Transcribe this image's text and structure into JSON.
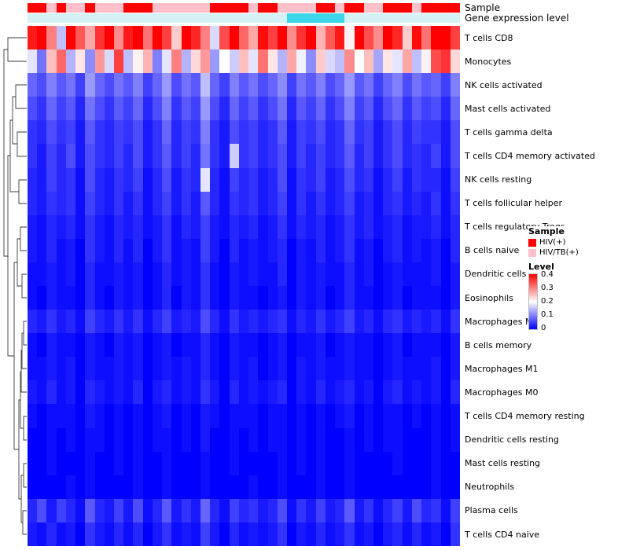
{
  "annotations": {
    "sample_label": "Sample",
    "expression_label": "Gene expression level"
  },
  "legend": {
    "sample": {
      "title": "Sample",
      "items": [
        {
          "label": "HIV(+)",
          "color": "#FF0000"
        },
        {
          "label": "HIV/TB(+)",
          "color": "#FFC0CB"
        }
      ]
    },
    "level": {
      "title": "Level",
      "ticks": [
        "0.4",
        "0.3",
        "0.2",
        "0.1",
        "0"
      ]
    }
  },
  "colors": {
    "sample_groups": {
      "HIV(+)": "#FF0000",
      "HIV/TB(+)": "#FFC0CB"
    },
    "expression_levels": {
      "low": "#D4F2F6",
      "high": "#3CD6E8"
    },
    "scale_high": "#FF0000",
    "scale_mid": "#FFFFFF",
    "scale_low": "#0000FF"
  },
  "chart_data": {
    "type": "heatmap",
    "value_max": 0.4,
    "n_columns": 45,
    "rows": [
      "T cells CD8",
      "Monocytes",
      "NK cells activated",
      "Mast cells activated",
      "T cells gamma delta",
      "T cells CD4 memory activated",
      "NK cells resting",
      "T cells follicular helper",
      "T cells regulatory Tregs",
      "B cells naive",
      "Dendritic cells activated",
      "Eosinophils",
      "Macrophages M2",
      "B cells memory",
      "Macrophages M1",
      "Macrophages M0",
      "T cells CD4 memory resting",
      "Dendritic cells resting",
      "Mast cells resting",
      "Neutrophils",
      "Plasma cells",
      "T cells CD4 naive"
    ],
    "sample_groups": [
      "HIV(+)",
      "HIV(+)",
      "HIV/TB(+)",
      "HIV(+)",
      "HIV/TB(+)",
      "HIV/TB(+)",
      "HIV(+)",
      "HIV/TB(+)",
      "HIV/TB(+)",
      "HIV/TB(+)",
      "HIV(+)",
      "HIV(+)",
      "HIV(+)",
      "HIV/TB(+)",
      "HIV/TB(+)",
      "HIV/TB(+)",
      "HIV/TB(+)",
      "HIV/TB(+)",
      "HIV/TB(+)",
      "HIV(+)",
      "HIV(+)",
      "HIV(+)",
      "HIV(+)",
      "HIV/TB(+)",
      "HIV(+)",
      "HIV(+)",
      "HIV/TB(+)",
      "HIV/TB(+)",
      "HIV/TB(+)",
      "HIV/TB(+)",
      "HIV(+)",
      "HIV(+)",
      "HIV/TB(+)",
      "HIV(+)",
      "HIV(+)",
      "HIV/TB(+)",
      "HIV/TB(+)",
      "HIV(+)",
      "HIV(+)",
      "HIV(+)",
      "HIV/TB(+)",
      "HIV(+)",
      "HIV(+)",
      "HIV(+)",
      "HIV(+)"
    ],
    "expression_levels": [
      "low",
      "low",
      "low",
      "low",
      "low",
      "low",
      "low",
      "low",
      "low",
      "low",
      "low",
      "low",
      "low",
      "low",
      "low",
      "low",
      "low",
      "low",
      "low",
      "low",
      "low",
      "low",
      "low",
      "low",
      "low",
      "low",
      "low",
      "high",
      "high",
      "high",
      "high",
      "high",
      "high",
      "low",
      "low",
      "low",
      "low",
      "low",
      "low",
      "low",
      "low",
      "low",
      "low",
      "low",
      "low"
    ],
    "matrix": [
      [
        0.38,
        0.42,
        0.3,
        0.15,
        0.4,
        0.33,
        0.27,
        0.36,
        0.44,
        0.29,
        0.38,
        0.45,
        0.31,
        0.4,
        0.35,
        0.24,
        0.43,
        0.37,
        0.3,
        0.17,
        0.34,
        0.41,
        0.32,
        0.27,
        0.39,
        0.35,
        0.44,
        0.29,
        0.36,
        0.41,
        0.26,
        0.33,
        0.38,
        0.21,
        0.4,
        0.34,
        0.29,
        0.43,
        0.37,
        0.24,
        0.39,
        0.31,
        0.45,
        0.42,
        0.35
      ],
      [
        0.18,
        0.09,
        0.25,
        0.32,
        0.14,
        0.22,
        0.11,
        0.28,
        0.17,
        0.35,
        0.15,
        0.21,
        0.26,
        0.1,
        0.18,
        0.3,
        0.14,
        0.23,
        0.28,
        0.12,
        0.2,
        0.16,
        0.25,
        0.18,
        0.31,
        0.22,
        0.14,
        0.27,
        0.19,
        0.11,
        0.24,
        0.17,
        0.15,
        0.29,
        0.2,
        0.25,
        0.13,
        0.22,
        0.18,
        0.27,
        0.15,
        0.21,
        0.34,
        0.36,
        0.23
      ],
      [
        0.08,
        0.06,
        0.1,
        0.07,
        0.09,
        0.05,
        0.12,
        0.08,
        0.06,
        0.09,
        0.07,
        0.1,
        0.05,
        0.08,
        0.12,
        0.06,
        0.09,
        0.07,
        0.15,
        0.08,
        0.05,
        0.1,
        0.07,
        0.09,
        0.06,
        0.08,
        0.11,
        0.05,
        0.09,
        0.07,
        0.1,
        0.06,
        0.08,
        0.12,
        0.07,
        0.09,
        0.05,
        0.08,
        0.1,
        0.06,
        0.09,
        0.07,
        0.08,
        0.05,
        0.1
      ],
      [
        0.06,
        0.04,
        0.08,
        0.05,
        0.07,
        0.03,
        0.09,
        0.06,
        0.04,
        0.07,
        0.05,
        0.08,
        0.03,
        0.06,
        0.1,
        0.04,
        0.07,
        0.05,
        0.12,
        0.06,
        0.03,
        0.08,
        0.05,
        0.07,
        0.04,
        0.06,
        0.09,
        0.03,
        0.07,
        0.05,
        0.08,
        0.04,
        0.06,
        0.1,
        0.05,
        0.07,
        0.03,
        0.06,
        0.08,
        0.04,
        0.07,
        0.05,
        0.06,
        0.03,
        0.08
      ],
      [
        0.04,
        0.03,
        0.06,
        0.04,
        0.05,
        0.02,
        0.07,
        0.04,
        0.03,
        0.05,
        0.04,
        0.06,
        0.02,
        0.04,
        0.08,
        0.03,
        0.05,
        0.04,
        0.1,
        0.04,
        0.02,
        0.06,
        0.04,
        0.05,
        0.03,
        0.04,
        0.07,
        0.02,
        0.05,
        0.04,
        0.06,
        0.03,
        0.04,
        0.08,
        0.04,
        0.05,
        0.02,
        0.04,
        0.06,
        0.03,
        0.05,
        0.04,
        0.04,
        0.02,
        0.06
      ],
      [
        0.04,
        0.02,
        0.05,
        0.03,
        0.06,
        0.02,
        0.06,
        0.04,
        0.03,
        0.05,
        0.03,
        0.06,
        0.02,
        0.04,
        0.07,
        0.03,
        0.05,
        0.03,
        0.09,
        0.04,
        0.02,
        0.16,
        0.04,
        0.05,
        0.03,
        0.04,
        0.06,
        0.02,
        0.05,
        0.03,
        0.05,
        0.03,
        0.04,
        0.07,
        0.03,
        0.05,
        0.02,
        0.04,
        0.06,
        0.03,
        0.04,
        0.03,
        0.05,
        0.02,
        0.06
      ],
      [
        0.03,
        0.02,
        0.05,
        0.03,
        0.04,
        0.01,
        0.06,
        0.03,
        0.02,
        0.04,
        0.03,
        0.05,
        0.01,
        0.03,
        0.06,
        0.02,
        0.04,
        0.03,
        0.18,
        0.03,
        0.01,
        0.05,
        0.03,
        0.04,
        0.02,
        0.03,
        0.06,
        0.01,
        0.04,
        0.03,
        0.05,
        0.02,
        0.03,
        0.06,
        0.03,
        0.04,
        0.01,
        0.03,
        0.05,
        0.02,
        0.04,
        0.03,
        0.03,
        0.01,
        0.05
      ],
      [
        0.03,
        0.02,
        0.04,
        0.03,
        0.04,
        0.01,
        0.05,
        0.03,
        0.02,
        0.04,
        0.02,
        0.04,
        0.01,
        0.03,
        0.05,
        0.02,
        0.04,
        0.02,
        0.07,
        0.03,
        0.01,
        0.04,
        0.03,
        0.04,
        0.02,
        0.03,
        0.05,
        0.01,
        0.04,
        0.02,
        0.04,
        0.02,
        0.03,
        0.05,
        0.02,
        0.03,
        0.01,
        0.03,
        0.04,
        0.02,
        0.03,
        0.02,
        0.04,
        0.01,
        0.04
      ],
      [
        0.02,
        0.01,
        0.03,
        0.02,
        0.03,
        0.01,
        0.04,
        0.02,
        0.01,
        0.03,
        0.02,
        0.03,
        0.01,
        0.02,
        0.04,
        0.01,
        0.03,
        0.02,
        0.05,
        0.02,
        0.01,
        0.03,
        0.02,
        0.03,
        0.01,
        0.02,
        0.04,
        0.01,
        0.03,
        0.02,
        0.03,
        0.01,
        0.02,
        0.04,
        0.02,
        0.03,
        0.01,
        0.02,
        0.03,
        0.01,
        0.02,
        0.02,
        0.03,
        0.01,
        0.03
      ],
      [
        0.02,
        0.01,
        0.03,
        0.01,
        0.02,
        0.0,
        0.04,
        0.02,
        0.01,
        0.03,
        0.01,
        0.03,
        0.0,
        0.02,
        0.04,
        0.01,
        0.02,
        0.01,
        0.05,
        0.02,
        0.0,
        0.03,
        0.01,
        0.02,
        0.01,
        0.02,
        0.03,
        0.0,
        0.02,
        0.01,
        0.03,
        0.01,
        0.02,
        0.04,
        0.01,
        0.02,
        0.0,
        0.02,
        0.03,
        0.01,
        0.02,
        0.01,
        0.02,
        0.0,
        0.03
      ],
      [
        0.01,
        0.01,
        0.02,
        0.01,
        0.02,
        0.0,
        0.03,
        0.01,
        0.01,
        0.02,
        0.01,
        0.02,
        0.0,
        0.01,
        0.03,
        0.01,
        0.02,
        0.01,
        0.04,
        0.01,
        0.0,
        0.02,
        0.01,
        0.02,
        0.01,
        0.01,
        0.03,
        0.0,
        0.02,
        0.01,
        0.02,
        0.01,
        0.01,
        0.03,
        0.01,
        0.02,
        0.0,
        0.01,
        0.02,
        0.01,
        0.01,
        0.01,
        0.02,
        0.0,
        0.02
      ],
      [
        0.01,
        0.0,
        0.02,
        0.01,
        0.01,
        0.0,
        0.03,
        0.01,
        0.0,
        0.02,
        0.01,
        0.02,
        0.0,
        0.01,
        0.03,
        0.0,
        0.02,
        0.01,
        0.04,
        0.01,
        0.0,
        0.02,
        0.01,
        0.01,
        0.0,
        0.01,
        0.02,
        0.0,
        0.02,
        0.01,
        0.02,
        0.0,
        0.01,
        0.03,
        0.01,
        0.01,
        0.0,
        0.01,
        0.02,
        0.0,
        0.01,
        0.01,
        0.01,
        0.0,
        0.02
      ],
      [
        0.03,
        0.02,
        0.04,
        0.02,
        0.03,
        0.01,
        0.05,
        0.03,
        0.02,
        0.04,
        0.02,
        0.04,
        0.01,
        0.03,
        0.05,
        0.02,
        0.03,
        0.02,
        0.06,
        0.03,
        0.01,
        0.04,
        0.02,
        0.03,
        0.02,
        0.03,
        0.04,
        0.01,
        0.03,
        0.02,
        0.04,
        0.02,
        0.03,
        0.05,
        0.02,
        0.03,
        0.01,
        0.03,
        0.04,
        0.02,
        0.03,
        0.02,
        0.03,
        0.01,
        0.04
      ],
      [
        0.01,
        0.0,
        0.02,
        0.01,
        0.01,
        0.0,
        0.02,
        0.01,
        0.0,
        0.02,
        0.01,
        0.02,
        0.0,
        0.01,
        0.02,
        0.0,
        0.01,
        0.01,
        0.03,
        0.01,
        0.0,
        0.02,
        0.01,
        0.01,
        0.0,
        0.01,
        0.02,
        0.0,
        0.01,
        0.01,
        0.02,
        0.0,
        0.01,
        0.02,
        0.01,
        0.01,
        0.0,
        0.01,
        0.02,
        0.0,
        0.01,
        0.01,
        0.01,
        0.0,
        0.02
      ],
      [
        0.01,
        0.01,
        0.02,
        0.01,
        0.02,
        0.0,
        0.02,
        0.01,
        0.01,
        0.02,
        0.01,
        0.02,
        0.0,
        0.01,
        0.02,
        0.01,
        0.02,
        0.01,
        0.03,
        0.01,
        0.0,
        0.02,
        0.01,
        0.02,
        0.0,
        0.01,
        0.02,
        0.0,
        0.02,
        0.01,
        0.02,
        0.01,
        0.01,
        0.02,
        0.01,
        0.01,
        0.0,
        0.01,
        0.02,
        0.01,
        0.01,
        0.01,
        0.02,
        0.0,
        0.02
      ],
      [
        0.02,
        0.01,
        0.03,
        0.01,
        0.02,
        0.0,
        0.03,
        0.02,
        0.01,
        0.02,
        0.01,
        0.03,
        0.0,
        0.02,
        0.03,
        0.01,
        0.02,
        0.01,
        0.04,
        0.02,
        0.0,
        0.03,
        0.01,
        0.02,
        0.01,
        0.02,
        0.03,
        0.0,
        0.02,
        0.01,
        0.03,
        0.01,
        0.02,
        0.03,
        0.01,
        0.02,
        0.0,
        0.02,
        0.03,
        0.01,
        0.02,
        0.01,
        0.02,
        0.0,
        0.03
      ],
      [
        0.01,
        0.0,
        0.01,
        0.01,
        0.01,
        0.0,
        0.02,
        0.01,
        0.0,
        0.01,
        0.0,
        0.01,
        0.0,
        0.01,
        0.02,
        0.0,
        0.01,
        0.0,
        0.02,
        0.01,
        0.0,
        0.01,
        0.01,
        0.01,
        0.0,
        0.01,
        0.01,
        0.0,
        0.01,
        0.0,
        0.01,
        0.0,
        0.01,
        0.02,
        0.0,
        0.01,
        0.0,
        0.01,
        0.01,
        0.0,
        0.01,
        0.0,
        0.01,
        0.0,
        0.01
      ],
      [
        0.0,
        0.0,
        0.01,
        0.0,
        0.01,
        0.0,
        0.01,
        0.01,
        0.0,
        0.01,
        0.0,
        0.01,
        0.0,
        0.01,
        0.01,
        0.0,
        0.01,
        0.0,
        0.02,
        0.0,
        0.0,
        0.01,
        0.0,
        0.01,
        0.0,
        0.01,
        0.01,
        0.0,
        0.01,
        0.0,
        0.01,
        0.0,
        0.0,
        0.01,
        0.0,
        0.01,
        0.0,
        0.01,
        0.01,
        0.0,
        0.0,
        0.0,
        0.01,
        0.0,
        0.01
      ],
      [
        0.0,
        0.0,
        0.01,
        0.0,
        0.0,
        0.0,
        0.01,
        0.0,
        0.0,
        0.01,
        0.0,
        0.01,
        0.0,
        0.0,
        0.01,
        0.0,
        0.0,
        0.0,
        0.01,
        0.0,
        0.0,
        0.01,
        0.0,
        0.0,
        0.0,
        0.0,
        0.01,
        0.0,
        0.01,
        0.0,
        0.01,
        0.0,
        0.0,
        0.01,
        0.0,
        0.0,
        0.0,
        0.0,
        0.01,
        0.0,
        0.0,
        0.0,
        0.01,
        0.0,
        0.0
      ],
      [
        0.0,
        0.0,
        0.0,
        0.0,
        0.01,
        0.0,
        0.01,
        0.0,
        0.0,
        0.0,
        0.0,
        0.01,
        0.0,
        0.0,
        0.01,
        0.0,
        0.0,
        0.0,
        0.01,
        0.0,
        0.0,
        0.0,
        0.0,
        0.01,
        0.0,
        0.0,
        0.01,
        0.0,
        0.0,
        0.0,
        0.01,
        0.0,
        0.0,
        0.01,
        0.0,
        0.0,
        0.0,
        0.0,
        0.0,
        0.0,
        0.0,
        0.0,
        0.01,
        0.0,
        0.0
      ],
      [
        0.03,
        0.06,
        0.02,
        0.05,
        0.03,
        0.01,
        0.07,
        0.03,
        0.02,
        0.05,
        0.02,
        0.06,
        0.01,
        0.03,
        0.07,
        0.02,
        0.04,
        0.02,
        0.08,
        0.03,
        0.01,
        0.05,
        0.03,
        0.04,
        0.02,
        0.03,
        0.06,
        0.01,
        0.04,
        0.02,
        0.05,
        0.02,
        0.03,
        0.07,
        0.02,
        0.04,
        0.01,
        0.03,
        0.05,
        0.02,
        0.06,
        0.03,
        0.04,
        0.01,
        0.05
      ],
      [
        0.02,
        0.01,
        0.03,
        0.01,
        0.02,
        0.0,
        0.04,
        0.02,
        0.01,
        0.03,
        0.01,
        0.03,
        0.0,
        0.02,
        0.04,
        0.01,
        0.02,
        0.01,
        0.05,
        0.02,
        0.0,
        0.03,
        0.01,
        0.02,
        0.01,
        0.02,
        0.04,
        0.0,
        0.02,
        0.01,
        0.03,
        0.01,
        0.02,
        0.04,
        0.01,
        0.02,
        0.0,
        0.02,
        0.03,
        0.01,
        0.03,
        0.01,
        0.02,
        0.0,
        0.04
      ]
    ]
  }
}
